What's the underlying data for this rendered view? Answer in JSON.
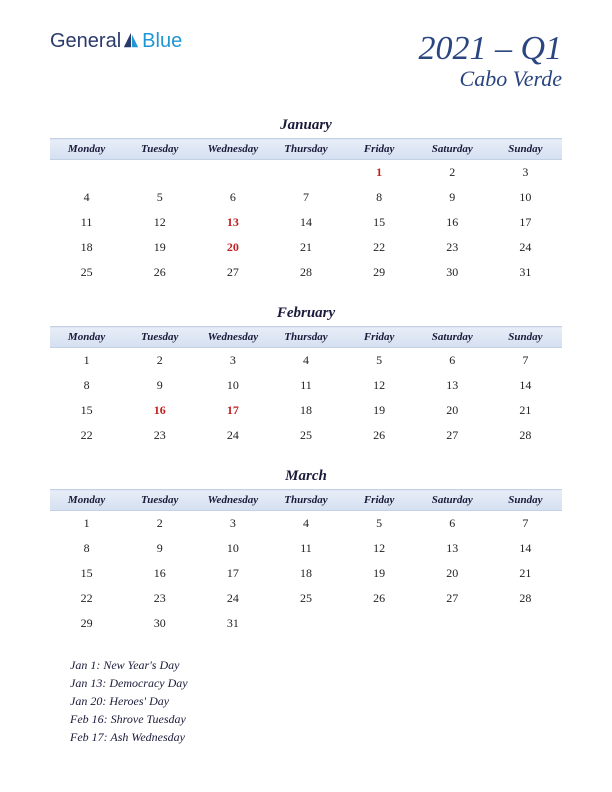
{
  "logo": {
    "text1": "General",
    "text2": "Blue",
    "color1": "#2a3a6b",
    "color2": "#2196d4"
  },
  "title": {
    "main": "2021 – Q1",
    "sub": "Cabo Verde",
    "color": "#2a4580",
    "main_fontsize": 34,
    "sub_fontsize": 22
  },
  "day_headers": [
    "Monday",
    "Tuesday",
    "Wednesday",
    "Thursday",
    "Friday",
    "Saturday",
    "Sunday"
  ],
  "header_bg_gradient": [
    "#e8eef8",
    "#d4dff0"
  ],
  "header_border": "#c4d0e6",
  "holiday_color": "#c02020",
  "text_color": "#222",
  "months": [
    {
      "name": "January",
      "weeks": [
        [
          null,
          null,
          null,
          null,
          {
            "d": 1,
            "h": true
          },
          {
            "d": 2
          },
          {
            "d": 3
          }
        ],
        [
          {
            "d": 4
          },
          {
            "d": 5
          },
          {
            "d": 6
          },
          {
            "d": 7
          },
          {
            "d": 8
          },
          {
            "d": 9
          },
          {
            "d": 10
          }
        ],
        [
          {
            "d": 11
          },
          {
            "d": 12
          },
          {
            "d": 13,
            "h": true
          },
          {
            "d": 14
          },
          {
            "d": 15
          },
          {
            "d": 16
          },
          {
            "d": 17
          }
        ],
        [
          {
            "d": 18
          },
          {
            "d": 19
          },
          {
            "d": 20,
            "h": true
          },
          {
            "d": 21
          },
          {
            "d": 22
          },
          {
            "d": 23
          },
          {
            "d": 24
          }
        ],
        [
          {
            "d": 25
          },
          {
            "d": 26
          },
          {
            "d": 27
          },
          {
            "d": 28
          },
          {
            "d": 29
          },
          {
            "d": 30
          },
          {
            "d": 31
          }
        ]
      ]
    },
    {
      "name": "February",
      "weeks": [
        [
          {
            "d": 1
          },
          {
            "d": 2
          },
          {
            "d": 3
          },
          {
            "d": 4
          },
          {
            "d": 5
          },
          {
            "d": 6
          },
          {
            "d": 7
          }
        ],
        [
          {
            "d": 8
          },
          {
            "d": 9
          },
          {
            "d": 10
          },
          {
            "d": 11
          },
          {
            "d": 12
          },
          {
            "d": 13
          },
          {
            "d": 14
          }
        ],
        [
          {
            "d": 15
          },
          {
            "d": 16,
            "h": true
          },
          {
            "d": 17,
            "h": true
          },
          {
            "d": 18
          },
          {
            "d": 19
          },
          {
            "d": 20
          },
          {
            "d": 21
          }
        ],
        [
          {
            "d": 22
          },
          {
            "d": 23
          },
          {
            "d": 24
          },
          {
            "d": 25
          },
          {
            "d": 26
          },
          {
            "d": 27
          },
          {
            "d": 28
          }
        ]
      ]
    },
    {
      "name": "March",
      "weeks": [
        [
          {
            "d": 1
          },
          {
            "d": 2
          },
          {
            "d": 3
          },
          {
            "d": 4
          },
          {
            "d": 5
          },
          {
            "d": 6
          },
          {
            "d": 7
          }
        ],
        [
          {
            "d": 8
          },
          {
            "d": 9
          },
          {
            "d": 10
          },
          {
            "d": 11
          },
          {
            "d": 12
          },
          {
            "d": 13
          },
          {
            "d": 14
          }
        ],
        [
          {
            "d": 15
          },
          {
            "d": 16
          },
          {
            "d": 17
          },
          {
            "d": 18
          },
          {
            "d": 19
          },
          {
            "d": 20
          },
          {
            "d": 21
          }
        ],
        [
          {
            "d": 22
          },
          {
            "d": 23
          },
          {
            "d": 24
          },
          {
            "d": 25
          },
          {
            "d": 26
          },
          {
            "d": 27
          },
          {
            "d": 28
          }
        ],
        [
          {
            "d": 29
          },
          {
            "d": 30
          },
          {
            "d": 31
          },
          null,
          null,
          null,
          null
        ]
      ]
    }
  ],
  "holidays": [
    "Jan 1: New Year's Day",
    "Jan 13: Democracy Day",
    "Jan 20: Heroes' Day",
    "Feb 16: Shrove Tuesday",
    "Feb 17: Ash Wednesday"
  ]
}
